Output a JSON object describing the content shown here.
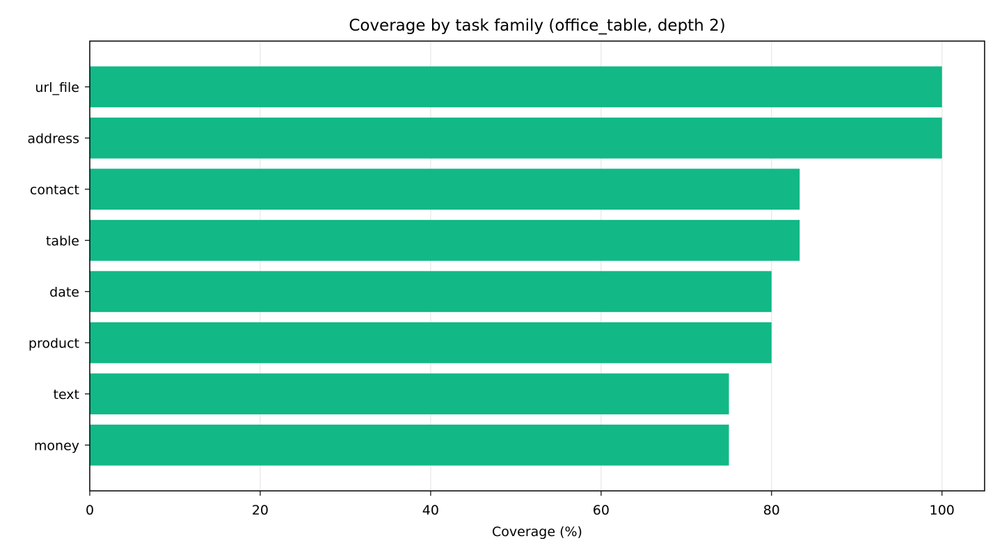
{
  "chart_data": {
    "type": "bar",
    "orientation": "horizontal",
    "title": "Coverage by task family (office_table, depth 2)",
    "xlabel": "Coverage (%)",
    "ylabel": "",
    "categories": [
      "url_file",
      "address",
      "contact",
      "table",
      "date",
      "product",
      "text",
      "money"
    ],
    "values": [
      100,
      100,
      83.3,
      83.3,
      80,
      80,
      75,
      75
    ],
    "xlim": [
      0,
      105
    ],
    "xticks": [
      0,
      20,
      40,
      60,
      80,
      100
    ],
    "grid": "vertical",
    "legend": "none",
    "colors": {
      "bar": "#12b886",
      "grid": "#e6e6e6",
      "axis": "#000000"
    }
  }
}
